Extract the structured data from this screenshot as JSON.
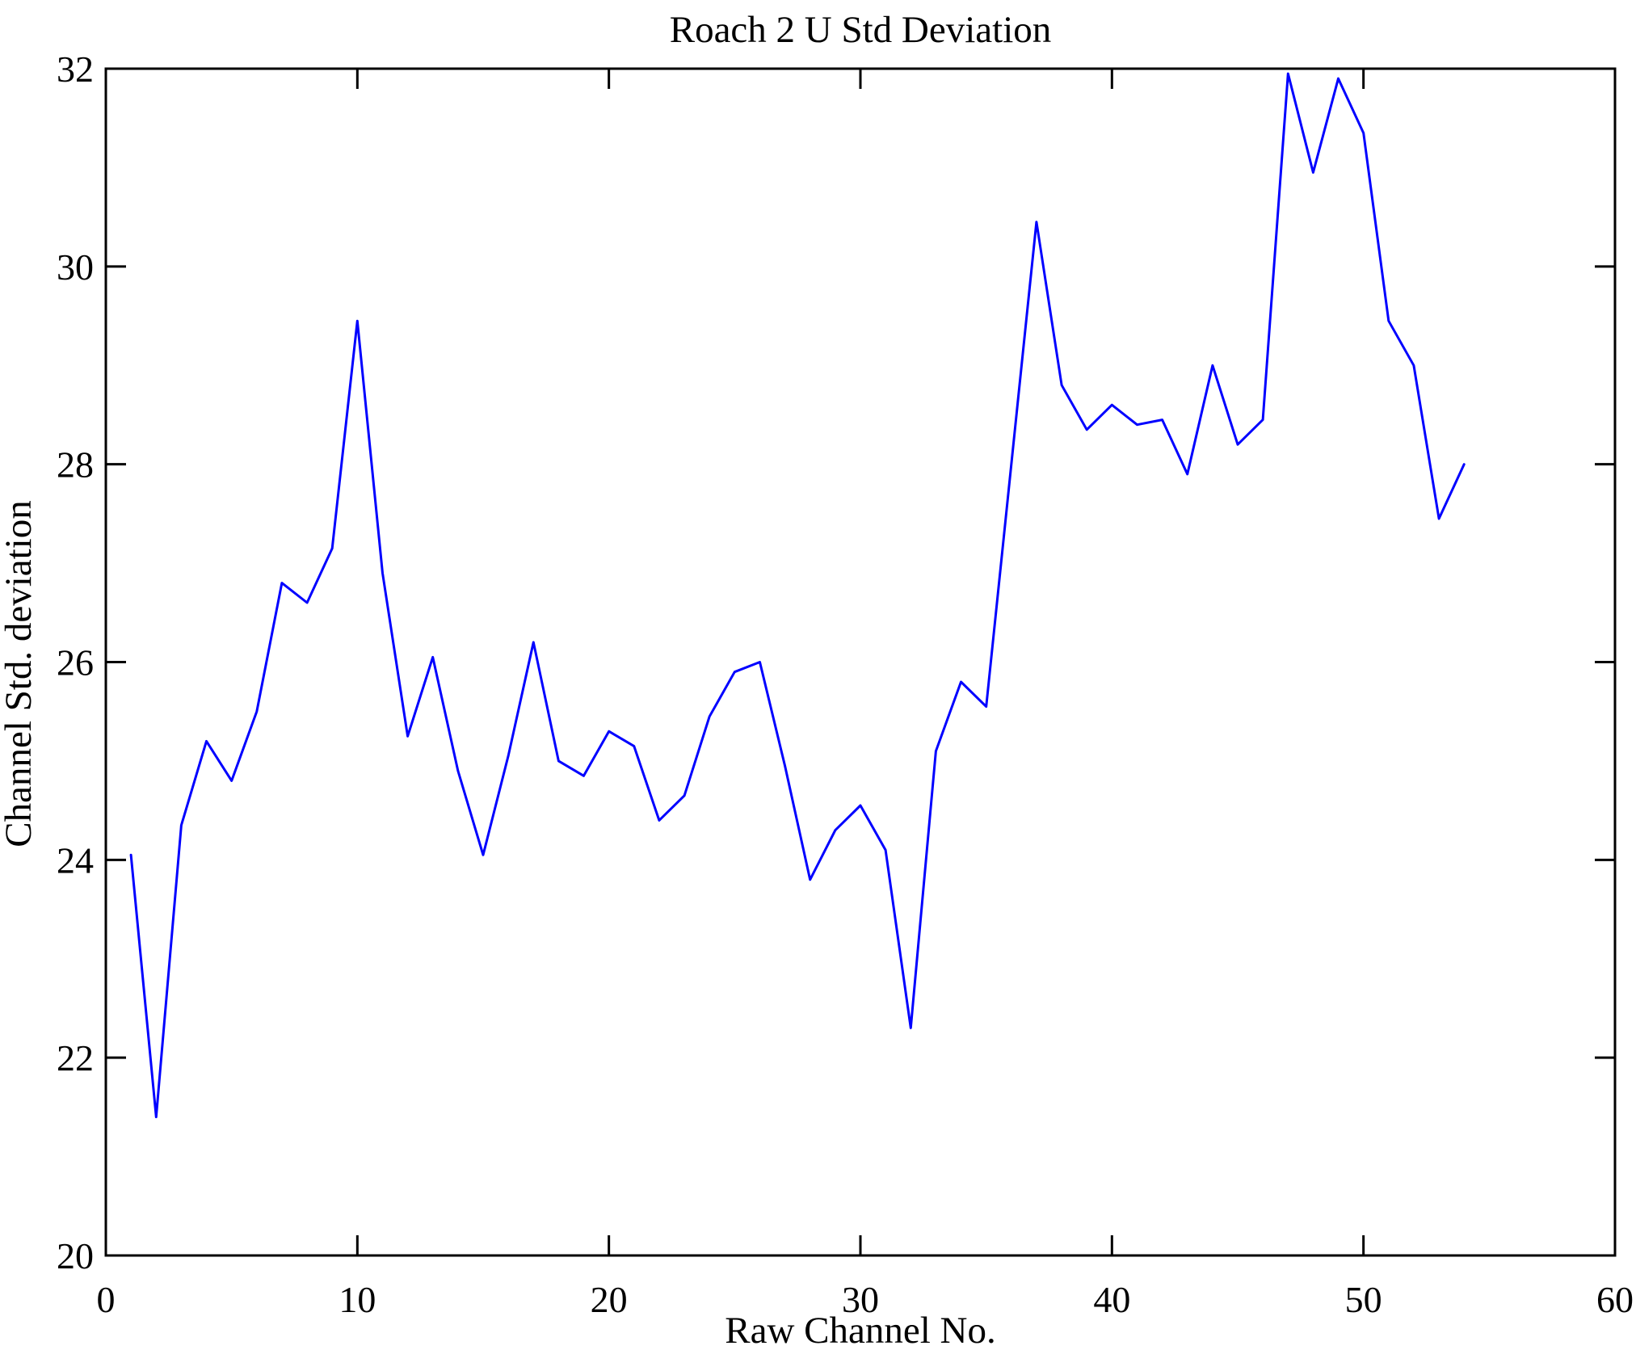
{
  "title": "Roach 2 U Std Deviation",
  "chart_data": {
    "type": "line",
    "title": "Roach 2 U Std Deviation",
    "xlabel": "Raw Channel No.",
    "ylabel": "Channel Std. deviation",
    "xlim": [
      0,
      60
    ],
    "ylim": [
      20,
      32
    ],
    "x_ticks": [
      "0",
      "10",
      "20",
      "30",
      "40",
      "50",
      "60"
    ],
    "y_ticks": [
      "20",
      "22",
      "24",
      "26",
      "28",
      "30",
      "32"
    ],
    "x_tick_values": [
      0,
      10,
      20,
      30,
      40,
      50,
      60
    ],
    "y_tick_values": [
      20,
      22,
      24,
      26,
      28,
      30,
      32
    ],
    "grid": false,
    "legend_position": "none",
    "line_color": "#0000ff",
    "axis_color": "#000000",
    "x": [
      1,
      2,
      3,
      4,
      5,
      6,
      7,
      8,
      9,
      10,
      11,
      12,
      13,
      14,
      15,
      16,
      17,
      18,
      19,
      20,
      21,
      22,
      23,
      24,
      25,
      26,
      27,
      28,
      29,
      30,
      31,
      32,
      33,
      34,
      35,
      36,
      37,
      38,
      39,
      40,
      41,
      42,
      43,
      44,
      45,
      46,
      47,
      48,
      49,
      50,
      51,
      52,
      53,
      54
    ],
    "y": [
      24.05,
      21.4,
      24.35,
      25.2,
      24.8,
      25.5,
      26.8,
      26.6,
      27.15,
      29.45,
      26.9,
      25.25,
      26.05,
      24.9,
      24.05,
      25.05,
      26.2,
      25.0,
      24.85,
      25.3,
      25.15,
      24.4,
      24.65,
      25.45,
      25.9,
      26.0,
      24.95,
      23.8,
      24.3,
      24.55,
      24.1,
      22.3,
      25.1,
      25.8,
      25.55,
      28.0,
      30.45,
      28.8,
      28.35,
      28.6,
      28.4,
      28.45,
      27.9,
      29.0,
      28.2,
      28.45,
      31.95,
      30.95,
      31.9,
      31.35,
      29.45,
      29.0,
      27.45,
      28.0
    ]
  }
}
